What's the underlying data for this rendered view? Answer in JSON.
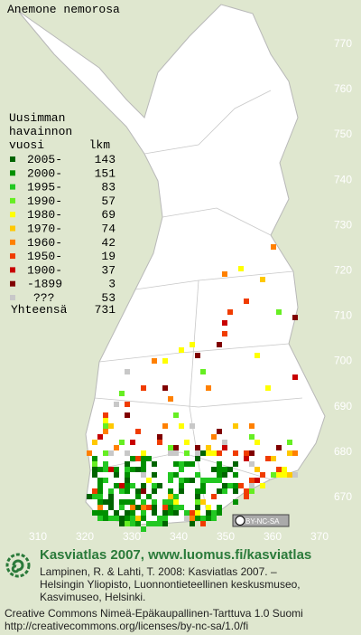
{
  "title": "Anemone nemorosa",
  "legend": {
    "heading": [
      "Uusimman",
      "havainnon",
      "vuosi"
    ],
    "count_heading": "lkm",
    "rows": [
      {
        "label": "2005-",
        "count": 143,
        "color": "#006400"
      },
      {
        "label": "2000-",
        "count": 151,
        "color": "#009000"
      },
      {
        "label": "1995-",
        "count": 83,
        "color": "#22c822"
      },
      {
        "label": "1990-",
        "count": 57,
        "color": "#66ee22"
      },
      {
        "label": "1980-",
        "count": 69,
        "color": "#ffff00"
      },
      {
        "label": "1970-",
        "count": 74,
        "color": "#ffc800"
      },
      {
        "label": "1960-",
        "count": 42,
        "color": "#ff8000"
      },
      {
        "label": "1950-",
        "count": 19,
        "color": "#f03c00"
      },
      {
        "label": "1900-",
        "count": 37,
        "color": "#c80000"
      },
      {
        "label": "-1899",
        "count": 3,
        "color": "#800000"
      },
      {
        "label": "???",
        "count": 53,
        "color": "#c8c8c8"
      }
    ],
    "total_label": "Yhteensä",
    "total": 731
  },
  "grid": {
    "y_labels": [
      770,
      760,
      750,
      740,
      730,
      720,
      710,
      700,
      690,
      680,
      670
    ],
    "x_labels": [
      310,
      320,
      330,
      340,
      350,
      360,
      370
    ]
  },
  "license_badge": "BY-NC-SA",
  "credits": {
    "title": "Kasviatlas 2007, www.luomus.fi/kasviatlas",
    "citation": [
      "Lampinen, R. & Lahti, T. 2008: Kasviatlas 2007. –",
      "Helsingin Yliopisto, Luonnontieteellinen keskusmuseo,",
      "Kasvimuseo, Helsinki."
    ],
    "license": [
      "Creative Commons Nimeä-Epäkaupallinen-Tarttuva 1.0 Suomi",
      "http://creativecommons.org/licenses/by-nc-sa/1.0/fi"
    ]
  }
}
